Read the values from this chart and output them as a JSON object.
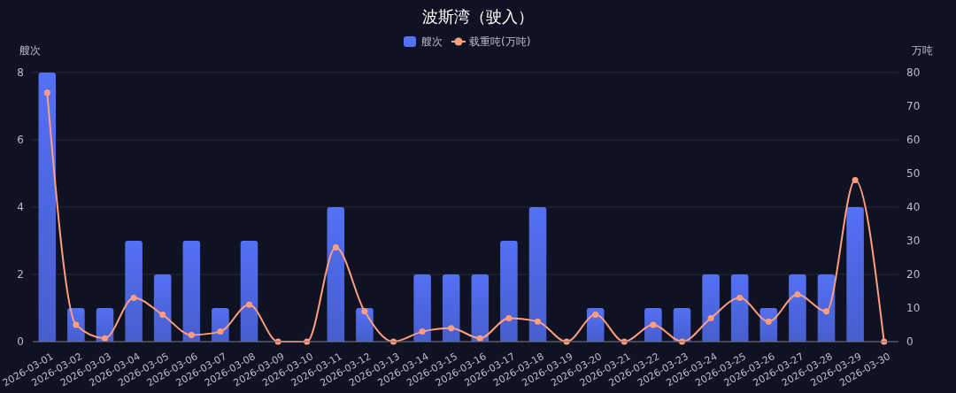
{
  "chart_data": {
    "type": "bar",
    "title": "波斯湾（驶入）",
    "ylabel": "艘次",
    "y2label": "万吨",
    "categories": [
      "2026-03-01",
      "2026-03-02",
      "2026-03-03",
      "2026-03-04",
      "2026-03-05",
      "2026-03-06",
      "2026-03-07",
      "2026-03-08",
      "2026-03-09",
      "2026-03-10",
      "2026-03-11",
      "2026-03-12",
      "2026-03-13",
      "2026-03-14",
      "2026-03-15",
      "2026-03-16",
      "2026-03-17",
      "2026-03-18",
      "2026-03-19",
      "2026-03-20",
      "2026-03-21",
      "2026-03-22",
      "2026-03-23",
      "2026-03-24",
      "2026-03-25",
      "2026-03-26",
      "2026-03-27",
      "2026-03-28",
      "2026-03-29",
      "2026-03-30"
    ],
    "series": [
      {
        "name": "艘次",
        "color": "#5470f5",
        "values": [
          8,
          1,
          1,
          3,
          2,
          3,
          1,
          3,
          0,
          0,
          4,
          1,
          0,
          2,
          2,
          2,
          3,
          4,
          0,
          1,
          0,
          1,
          1,
          2,
          2,
          1,
          2,
          2,
          4,
          0
        ]
      },
      {
        "name": "载重吨(万吨)",
        "type": "line",
        "axis": "y2",
        "color": "#ff9f7f",
        "values": [
          74,
          5,
          1,
          13,
          8,
          2,
          3,
          11,
          0,
          0,
          28,
          9,
          0,
          3,
          4,
          1,
          7,
          6,
          0,
          8,
          0,
          5,
          0,
          7,
          13,
          6,
          14,
          9,
          48,
          0
        ]
      }
    ],
    "ylim": [
      0,
      8
    ],
    "yticks": [
      0,
      2,
      4,
      6,
      8
    ],
    "y2lim": [
      0,
      80
    ],
    "y2ticks": [
      0,
      10,
      20,
      30,
      40,
      50,
      60,
      70,
      80
    ],
    "grid": "y",
    "legend": "top",
    "marker": "circle",
    "line_style": "solid"
  }
}
